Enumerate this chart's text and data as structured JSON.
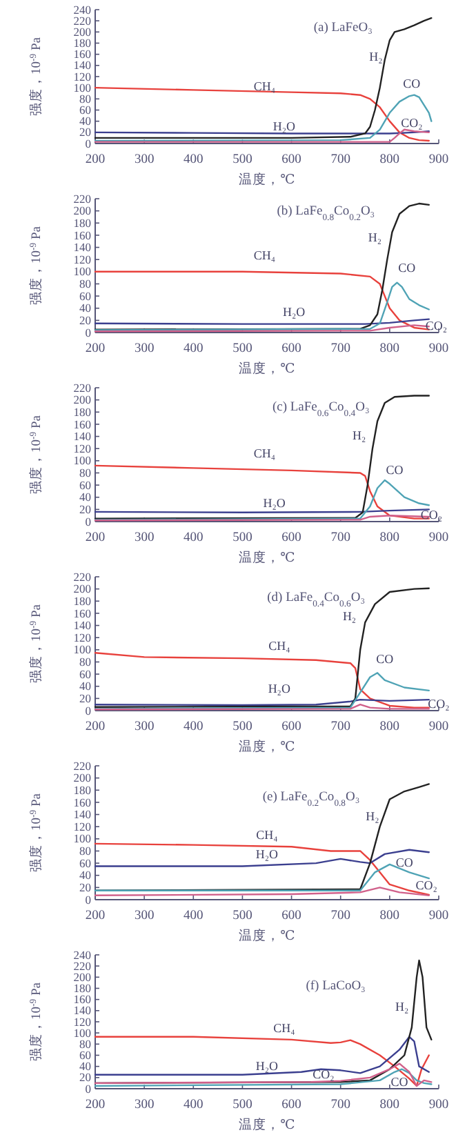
{
  "chart_data": [
    {
      "type": "line",
      "title": "(a) LaFeO₃",
      "xlabel": "温度，℃",
      "ylabel": "强度，10$^{-9}$ Pa",
      "xlim": [
        200,
        900
      ],
      "ylim": [
        0,
        240
      ],
      "xticks": [
        200,
        300,
        400,
        500,
        600,
        700,
        800,
        900
      ],
      "yticks": [
        0,
        20,
        40,
        60,
        80,
        100,
        120,
        140,
        160,
        180,
        200,
        220,
        240
      ],
      "series": [
        {
          "name": "CH₄",
          "color": "#e8413c",
          "x": [
            200,
            400,
            600,
            700,
            740,
            760,
            780,
            800,
            820,
            840,
            860,
            880
          ],
          "values": [
            100,
            96,
            92,
            90,
            87,
            80,
            65,
            40,
            20,
            10,
            6,
            5
          ]
        },
        {
          "name": "H₂O",
          "color": "#3b3f8f",
          "x": [
            200,
            400,
            600,
            750,
            800,
            850,
            880
          ],
          "values": [
            20,
            19,
            18,
            18,
            18,
            20,
            22
          ]
        },
        {
          "name": "H₂",
          "color": "#222222",
          "x": [
            200,
            600,
            720,
            750,
            760,
            770,
            780,
            790,
            800,
            810,
            830,
            850,
            870,
            885
          ],
          "values": [
            10,
            10,
            12,
            18,
            30,
            60,
            100,
            150,
            185,
            200,
            205,
            212,
            220,
            225
          ]
        },
        {
          "name": "CO",
          "color": "#4fa3b5",
          "x": [
            200,
            700,
            760,
            780,
            800,
            820,
            840,
            850,
            860,
            880,
            885
          ],
          "values": [
            5,
            6,
            10,
            25,
            55,
            75,
            85,
            87,
            83,
            55,
            40
          ]
        },
        {
          "name": "CO₂",
          "color": "#d0608a",
          "x": [
            200,
            800,
            810,
            820,
            830,
            850,
            880
          ],
          "values": [
            3,
            3,
            10,
            18,
            25,
            22,
            20
          ]
        }
      ]
    },
    {
      "type": "line",
      "title": "(b) LaFe$_{0.8}$Co$_{0.2}$O₃",
      "xlabel": "温度，℃",
      "ylabel": "强度，10$^{-9}$ Pa",
      "xlim": [
        200,
        900
      ],
      "ylim": [
        0,
        220
      ],
      "xticks": [
        200,
        300,
        400,
        500,
        600,
        700,
        800,
        900
      ],
      "yticks": [
        0,
        20,
        40,
        60,
        80,
        100,
        120,
        140,
        160,
        180,
        200,
        220
      ],
      "series": [
        {
          "name": "CH₄",
          "color": "#e8413c",
          "x": [
            200,
            500,
            700,
            760,
            780,
            790,
            800,
            820,
            850,
            880
          ],
          "values": [
            100,
            100,
            97,
            92,
            80,
            60,
            40,
            20,
            8,
            5
          ]
        },
        {
          "name": "H₂O",
          "color": "#3b3f8f",
          "x": [
            200,
            500,
            750,
            800,
            850,
            880
          ],
          "values": [
            15,
            14,
            14,
            16,
            20,
            22
          ]
        },
        {
          "name": "H₂",
          "color": "#222222",
          "x": [
            200,
            740,
            760,
            775,
            785,
            795,
            805,
            820,
            840,
            860,
            880
          ],
          "values": [
            5,
            6,
            12,
            30,
            70,
            120,
            165,
            195,
            208,
            212,
            210
          ]
        },
        {
          "name": "CO",
          "color": "#4fa3b5",
          "x": [
            200,
            760,
            780,
            795,
            805,
            815,
            825,
            840,
            860,
            880
          ],
          "values": [
            4,
            6,
            15,
            50,
            75,
            82,
            75,
            55,
            45,
            38
          ]
        },
        {
          "name": "CO₂",
          "color": "#d0608a",
          "x": [
            200,
            760,
            800,
            850,
            880
          ],
          "values": [
            2,
            3,
            8,
            12,
            10
          ]
        }
      ]
    },
    {
      "type": "line",
      "title": "(c) LaFe$_{0.6}$Co$_{0.4}$O₃",
      "xlabel": "温度，℃",
      "ylabel": "强度，10$^{-9}$ Pa",
      "xlim": [
        200,
        900
      ],
      "ylim": [
        0,
        220
      ],
      "xticks": [
        200,
        300,
        400,
        500,
        600,
        700,
        800,
        900
      ],
      "yticks": [
        0,
        20,
        40,
        60,
        80,
        100,
        120,
        140,
        160,
        180,
        200,
        220
      ],
      "series": [
        {
          "name": "CH₄",
          "color": "#e8413c",
          "x": [
            200,
            400,
            600,
            740,
            750,
            760,
            775,
            800,
            850,
            880
          ],
          "values": [
            92,
            88,
            84,
            80,
            75,
            50,
            25,
            10,
            5,
            5
          ]
        },
        {
          "name": "H₂O",
          "color": "#3b3f8f",
          "x": [
            200,
            500,
            740,
            800,
            880
          ],
          "values": [
            16,
            15,
            16,
            18,
            20
          ]
        },
        {
          "name": "H₂",
          "color": "#222222",
          "x": [
            200,
            730,
            745,
            755,
            765,
            775,
            790,
            810,
            850,
            880
          ],
          "values": [
            5,
            6,
            15,
            60,
            120,
            165,
            195,
            205,
            207,
            207
          ]
        },
        {
          "name": "CO",
          "color": "#4fa3b5",
          "x": [
            200,
            740,
            760,
            775,
            790,
            800,
            830,
            860,
            880
          ],
          "values": [
            3,
            5,
            25,
            55,
            68,
            62,
            40,
            30,
            27
          ]
        },
        {
          "name": "CO₂",
          "color": "#d0608a",
          "x": [
            200,
            740,
            760,
            800,
            880
          ],
          "values": [
            2,
            3,
            8,
            10,
            8
          ]
        }
      ]
    },
    {
      "type": "line",
      "title": "(d) LaFe$_{0.4}$Co$_{0.6}$O₃",
      "xlabel": "温度，℃",
      "ylabel": "强度，10$^{-9}$ Pa",
      "xlim": [
        200,
        900
      ],
      "ylim": [
        0,
        220
      ],
      "xticks": [
        200,
        300,
        400,
        500,
        600,
        700,
        800,
        900
      ],
      "yticks": [
        0,
        20,
        40,
        60,
        80,
        100,
        120,
        140,
        160,
        180,
        200,
        220
      ],
      "series": [
        {
          "name": "CH₄",
          "color": "#e8413c",
          "x": [
            200,
            300,
            500,
            650,
            720,
            730,
            740,
            760,
            800,
            850,
            880
          ],
          "values": [
            95,
            88,
            86,
            83,
            78,
            70,
            35,
            20,
            8,
            5,
            5
          ]
        },
        {
          "name": "H₂O",
          "color": "#3b3f8f",
          "x": [
            200,
            500,
            650,
            720,
            740,
            800,
            880
          ],
          "values": [
            10,
            9,
            10,
            15,
            18,
            16,
            18
          ]
        },
        {
          "name": "H₂",
          "color": "#222222",
          "x": [
            200,
            720,
            730,
            740,
            750,
            770,
            800,
            850,
            880
          ],
          "values": [
            6,
            7,
            20,
            100,
            145,
            175,
            195,
            200,
            201
          ]
        },
        {
          "name": "CO",
          "color": "#4fa3b5",
          "x": [
            200,
            720,
            740,
            760,
            775,
            790,
            830,
            880
          ],
          "values": [
            3,
            5,
            30,
            55,
            62,
            50,
            38,
            33
          ]
        },
        {
          "name": "CO₂",
          "color": "#d0608a",
          "x": [
            200,
            720,
            740,
            760,
            800,
            880
          ],
          "values": [
            2,
            3,
            10,
            5,
            3,
            3
          ]
        }
      ]
    },
    {
      "type": "line",
      "title": "(e) LaFe$_{0.2}$Co$_{0.8}$O₃",
      "xlabel": "温度，℃",
      "ylabel": "强度，10$^{-9}$ Pa",
      "xlim": [
        200,
        900
      ],
      "ylim": [
        0,
        220
      ],
      "xticks": [
        200,
        300,
        400,
        500,
        600,
        700,
        800,
        900
      ],
      "yticks": [
        0,
        20,
        40,
        60,
        80,
        100,
        120,
        140,
        160,
        180,
        200,
        220
      ],
      "series": [
        {
          "name": "CH₄",
          "color": "#e8413c",
          "x": [
            200,
            400,
            600,
            680,
            720,
            740,
            760,
            780,
            800,
            840,
            880
          ],
          "values": [
            92,
            90,
            87,
            80,
            80,
            80,
            65,
            45,
            25,
            15,
            8
          ]
        },
        {
          "name": "H₂O",
          "color": "#3b3f8f",
          "x": [
            200,
            500,
            650,
            700,
            740,
            760,
            790,
            840,
            880
          ],
          "values": [
            55,
            55,
            60,
            67,
            62,
            60,
            75,
            82,
            78
          ]
        },
        {
          "name": "H₂",
          "color": "#222222",
          "x": [
            200,
            740,
            760,
            780,
            800,
            830,
            860,
            880
          ],
          "values": [
            15,
            17,
            60,
            120,
            165,
            178,
            185,
            190
          ]
        },
        {
          "name": "CO",
          "color": "#4fa3b5",
          "x": [
            200,
            740,
            770,
            800,
            840,
            880
          ],
          "values": [
            15,
            15,
            45,
            58,
            45,
            35
          ]
        },
        {
          "name": "CO₂",
          "color": "#d0608a",
          "x": [
            200,
            600,
            740,
            780,
            820,
            880
          ],
          "values": [
            7,
            9,
            12,
            20,
            12,
            7
          ]
        }
      ]
    },
    {
      "type": "line",
      "title": "(f) LaCoO₃",
      "xlabel": "温度，℃",
      "ylabel": "强度，10$^{-9}$ Pa",
      "xlim": [
        200,
        900
      ],
      "ylim": [
        0,
        240
      ],
      "xticks": [
        200,
        300,
        400,
        500,
        600,
        700,
        800,
        900
      ],
      "yticks": [
        0,
        20,
        40,
        60,
        80,
        100,
        120,
        140,
        160,
        180,
        200,
        220,
        240
      ],
      "series": [
        {
          "name": "CH₄",
          "color": "#e8413c",
          "x": [
            200,
            400,
            600,
            680,
            700,
            720,
            740,
            780,
            810,
            840,
            855,
            865,
            880
          ],
          "values": [
            93,
            93,
            88,
            82,
            83,
            87,
            80,
            60,
            40,
            18,
            5,
            35,
            60
          ]
        },
        {
          "name": "H₂O",
          "color": "#3b3f8f",
          "x": [
            200,
            500,
            620,
            660,
            700,
            740,
            780,
            820,
            840,
            850,
            860,
            880
          ],
          "values": [
            25,
            25,
            30,
            35,
            33,
            28,
            40,
            70,
            93,
            85,
            40,
            30
          ]
        },
        {
          "name": "H₂",
          "color": "#222222",
          "x": [
            200,
            700,
            760,
            800,
            830,
            845,
            855,
            860,
            867,
            875,
            885
          ],
          "values": [
            10,
            12,
            15,
            35,
            60,
            110,
            200,
            230,
            200,
            110,
            88
          ]
        },
        {
          "name": "CO",
          "color": "#4fa3b5",
          "x": [
            200,
            700,
            780,
            810,
            825,
            840,
            855,
            870,
            885
          ],
          "values": [
            5,
            8,
            15,
            30,
            35,
            28,
            15,
            10,
            8
          ]
        },
        {
          "name": "CO₂",
          "color": "#d0608a",
          "x": [
            200,
            640,
            700,
            760,
            800,
            820,
            840,
            855,
            870,
            885
          ],
          "values": [
            10,
            12,
            14,
            20,
            35,
            45,
            30,
            5,
            15,
            12
          ]
        }
      ]
    }
  ]
}
